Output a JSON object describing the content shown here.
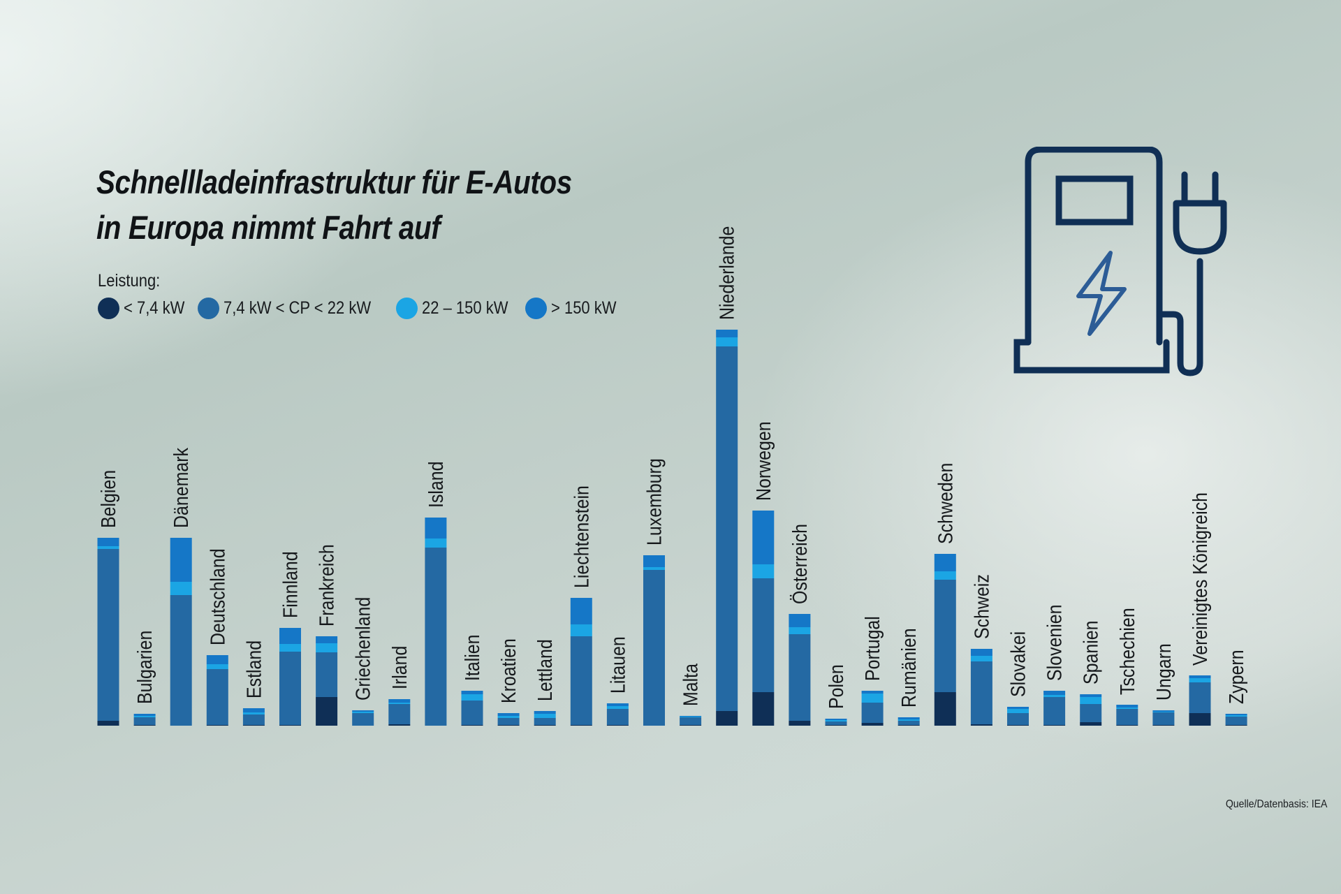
{
  "title": {
    "line1": "Schnellladeinfrastruktur für E-Autos",
    "line2": "in Europa nimmt Fahrt auf"
  },
  "legend": {
    "title": "Leistung:",
    "items": [
      {
        "label": "< 7,4 kW",
        "color": "#0f2f56"
      },
      {
        "label": "7,4 kW < CP < 22 kW",
        "color": "#2469a3"
      },
      {
        "label": "22 – 150 kW",
        "color": "#1ba5e4"
      },
      {
        "label": "> 150 kW",
        "color": "#1577c7"
      }
    ]
  },
  "source": "Quelle/Datenbasis: IEA",
  "icon": "ev-charging-station-icon",
  "chart_data": {
    "type": "bar",
    "stacked": true,
    "title": "Schnellladeinfrastruktur für E-Autos in Europa nimmt Fahrt auf",
    "xlabel": "",
    "ylabel": "",
    "grid": false,
    "legend_position": "top-left",
    "categories": [
      "Belgien",
      "Bulgarien",
      "Dänemark",
      "Deutschland",
      "Estland",
      "Finnland",
      "Frankreich",
      "Griechenland",
      "Irland",
      "Island",
      "Italien",
      "Kroatien",
      "Lettland",
      "Liechtenstein",
      "Litauen",
      "Luxemburg",
      "Malta",
      "Niederlande",
      "Norwegen",
      "Österreich",
      "Polen",
      "Portugal",
      "Rumänien",
      "Schweden",
      "Schweiz",
      "Slovakei",
      "Slovenien",
      "Spanien",
      "Tschechien",
      "Ungarn",
      "Vereinigtes Königreich",
      "Zypern"
    ],
    "series": [
      {
        "name": "< 7,4 kW",
        "color": "#0f2f56",
        "values": [
          7,
          1,
          0,
          1,
          1,
          1,
          41,
          0,
          2,
          0,
          1,
          1,
          1,
          1,
          1,
          0,
          1,
          21,
          48,
          7,
          1,
          4,
          1,
          48,
          2,
          1,
          1,
          5,
          1,
          1,
          18,
          1
        ]
      },
      {
        "name": "7,4 kW < CP < 22 kW",
        "color": "#2469a3",
        "values": [
          246,
          11,
          187,
          80,
          15,
          105,
          64,
          18,
          29,
          255,
          35,
          10,
          10,
          127,
          23,
          223,
          11,
          522,
          163,
          124,
          5,
          29,
          6,
          161,
          90,
          17,
          40,
          26,
          23,
          18,
          44,
          12
        ]
      },
      {
        "name": "22 – 150 kW",
        "color": "#1ba5e4",
        "values": [
          4,
          2,
          19,
          7,
          3,
          11,
          13,
          2,
          2,
          13,
          9,
          3,
          6,
          17,
          4,
          4,
          1,
          13,
          20,
          10,
          2,
          13,
          2,
          12,
          8,
          6,
          3,
          10,
          2,
          1,
          6,
          2
        ]
      },
      {
        "name": "> 150 kW",
        "color": "#1577c7",
        "values": [
          12,
          3,
          63,
          13,
          6,
          23,
          10,
          2,
          5,
          30,
          5,
          4,
          4,
          38,
          4,
          17,
          1,
          11,
          77,
          19,
          2,
          4,
          3,
          25,
          10,
          3,
          6,
          4,
          4,
          2,
          4,
          2
        ]
      }
    ]
  }
}
